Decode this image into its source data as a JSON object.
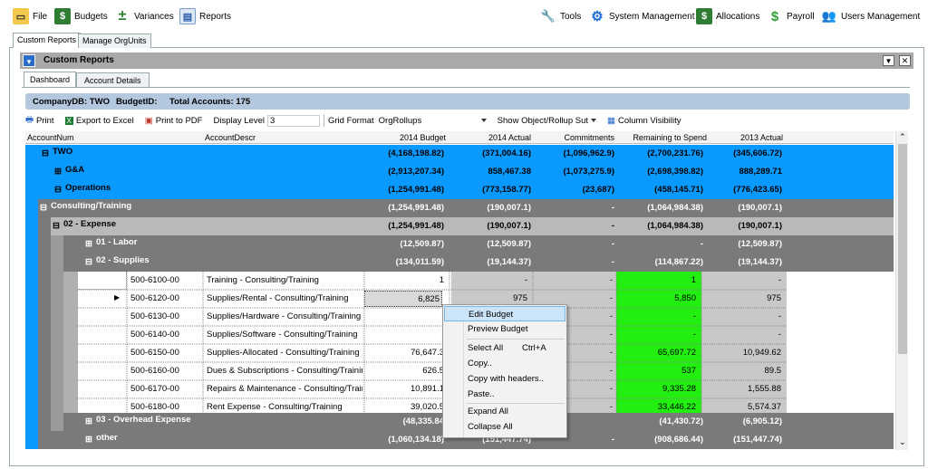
{
  "menubar": {
    "file": "File",
    "budgets": "Budgets",
    "variances": "Variances",
    "reports": "Reports",
    "tools": "Tools",
    "system": "System Management",
    "allocations": "Allocations",
    "payroll": "Payroll",
    "users": "Users Management"
  },
  "top_tabs": [
    "Custom Reports",
    "Manage OrgUnits"
  ],
  "panel": {
    "title": "Custom Reports"
  },
  "sub_tabs": [
    "Dashboard",
    "Account Details"
  ],
  "info": {
    "company": "CompanyDB: TWO",
    "budget": "BudgetID:",
    "accounts": "Total Accounts: 175"
  },
  "toolbar": {
    "print": "Print",
    "excel": "Export to Excel",
    "pdf": "Print to PDF",
    "display_level_label": "Display Level",
    "display_level_value": "3",
    "grid_format_label": "Grid Format",
    "grid_format_value": "OrgRollups",
    "show_object": "Show Object/Rollup Sut",
    "column_visibility": "Column Visibility"
  },
  "columns": [
    "AccountNum",
    "AccountDescr",
    "2014 Budget",
    "2014 Actual",
    "Commitments",
    "Remaining to Spend",
    "2013 Actual"
  ],
  "group_rows": [
    {
      "label": "TWO",
      "vals": [
        "(4,168,198.82)",
        "(371,004.16)",
        "(1,096,962.9)",
        "(2,700,231.76)",
        "(345,606.72)"
      ]
    },
    {
      "label": "G&A",
      "vals": [
        "(2,913,207.34)",
        "858,467.38",
        "(1,073,275.9)",
        "(2,698,398.82)",
        "888,289.71"
      ]
    },
    {
      "label": "Operations",
      "vals": [
        "(1,254,991.48)",
        "(773,158.77)",
        "(23,687)",
        "(458,145.71)",
        "(776,423.65)"
      ]
    },
    {
      "label": "Consulting/Training",
      "vals": [
        "(1,254,991.48)",
        "(190,007.1)",
        "-",
        "(1,064,984.38)",
        "(190,007.1)"
      ]
    },
    {
      "label": "02 - Expense",
      "vals": [
        "(1,254,991.48)",
        "(190,007.1)",
        "-",
        "(1,064,984.38)",
        "(190,007.1)"
      ]
    },
    {
      "label": "01 - Labor",
      "vals": [
        "(12,509.87)",
        "(12,509.87)",
        "-",
        "-",
        "(12,509.87)"
      ]
    },
    {
      "label": "02 - Supplies",
      "vals": [
        "(134,011.59)",
        "(19,144.37)",
        "-",
        "(114,867.22)",
        "(19,144.37)"
      ]
    }
  ],
  "detail_rows": [
    {
      "acct": "500-6100-00",
      "descr": "Training - Consulting/Training",
      "budget": "1",
      "actual": "-",
      "commit": "-",
      "remain": "1",
      "prior": "-"
    },
    {
      "acct": "500-6120-00",
      "descr": "Supplies/Rental - Consulting/Training",
      "budget": "6,825",
      "actual": "975",
      "commit": "-",
      "remain": "5,850",
      "prior": "975"
    },
    {
      "acct": "500-6130-00",
      "descr": "Supplies/Hardware - Consulting/Training",
      "budget": "",
      "actual": "",
      "commit": "-",
      "remain": "-",
      "prior": "-"
    },
    {
      "acct": "500-6140-00",
      "descr": "Supplies/Software - Consulting/Training",
      "budget": "",
      "actual": "",
      "commit": "-",
      "remain": "-",
      "prior": "-"
    },
    {
      "acct": "500-6150-00",
      "descr": "Supplies-Allocated - Consulting/Training",
      "budget": "76,647.3",
      "actual": "",
      "commit": "-",
      "remain": "65,697.72",
      "prior": "10,949.62"
    },
    {
      "acct": "500-6160-00",
      "descr": "Dues & Subscriptions - Consulting/Trainin",
      "budget": "626.5",
      "actual": "",
      "commit": "-",
      "remain": "537",
      "prior": "89.5"
    },
    {
      "acct": "500-6170-00",
      "descr": "Repairs & Maintenance - Consulting/Train",
      "budget": "10,891.1",
      "actual": "",
      "commit": "-",
      "remain": "9,335.28",
      "prior": "1,555.88"
    },
    {
      "acct": "500-6180-00",
      "descr": "Rent Expense - Consulting/Training",
      "budget": "39,020.5",
      "actual": "",
      "commit": "-",
      "remain": "33,446.22",
      "prior": "5,574.37"
    }
  ],
  "bottom_rows": [
    {
      "label": "03 - Overhead Expense",
      "vals": [
        "(48,335.84",
        "",
        "",
        "(41,430.72)",
        "(6,905.12)"
      ]
    },
    {
      "label": "other",
      "vals": [
        "(1,060,134.18)",
        "(151,447.74)",
        "-",
        "(908,686.44)",
        "(151,447.74)"
      ]
    }
  ],
  "context_menu": {
    "edit": "Edit Budget",
    "preview": "Preview Budget",
    "select_all": "Select All",
    "select_all_key": "Ctrl+A",
    "copy": "Copy..",
    "copy_headers": "Copy with headers..",
    "paste": "Paste..",
    "expand": "Expand All",
    "collapse": "Collapse All"
  },
  "colors": {
    "blue_row": "#0a99ff",
    "gray_row": "#7a7a7a",
    "green": "#22ee11",
    "info_bar": "#b3c7de"
  }
}
